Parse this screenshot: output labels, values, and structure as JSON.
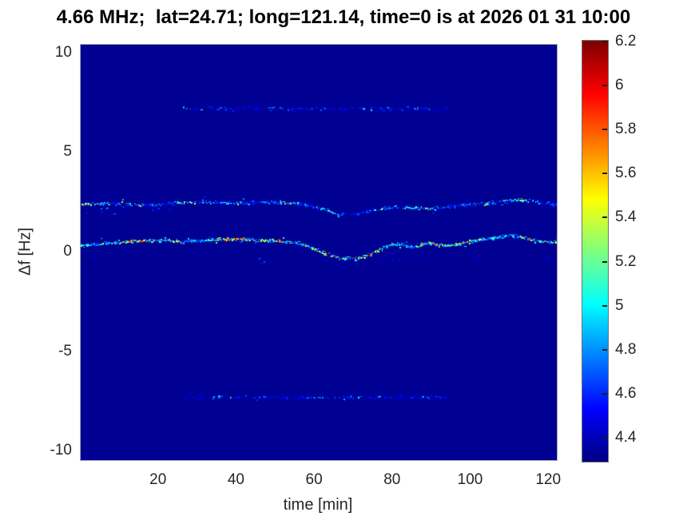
{
  "title": "4.66 MHz;  lat=24.71; long=121.14, time=0 is at 2026 01 31 10:00",
  "colors": {
    "page_background": "#ffffff",
    "heatmap_background_navy": "#000090",
    "axes_text": "#262626",
    "title_text": "#000000"
  },
  "chart_data": {
    "type": "heatmap",
    "title": "4.66 MHz;  lat=24.71; long=121.14, time=0 is at 2026 01 31 10:00",
    "xlabel": "time [min]",
    "ylabel": "Δf [Hz]",
    "xlim": [
      0,
      122
    ],
    "ylim": [
      -10.43,
      10.43
    ],
    "x_ticks": [
      20,
      40,
      60,
      80,
      100,
      120
    ],
    "y_ticks": [
      10,
      5,
      0,
      -5,
      -10
    ],
    "grid": false,
    "colormap": "jet",
    "caxis": [
      4.295,
      6.207
    ],
    "background_value": 4.33,
    "colorbar": {
      "position": "right",
      "tick_values": [
        6.2,
        6,
        5.8,
        5.6,
        5.4,
        5.2,
        5,
        4.8,
        4.6,
        4.4
      ],
      "tick_labels": [
        "6.2",
        "6",
        "5.8",
        "5.6",
        "5.4",
        "5.2",
        "5",
        "4.8",
        "4.6",
        "4.4"
      ]
    },
    "series": [
      {
        "name": "upper-doppler-trace",
        "description": "speckled Doppler trace near +2.5 Hz, mostly blue-cyan with sparse yellow/orange",
        "t": [
          0,
          8,
          16,
          24,
          32,
          40,
          48,
          56,
          62,
          66,
          70,
          75,
          80,
          85,
          90,
          95,
          100,
          104,
          108,
          113,
          118,
          122
        ],
        "f": [
          2.45,
          2.5,
          2.4,
          2.5,
          2.55,
          2.5,
          2.55,
          2.5,
          2.2,
          1.9,
          1.95,
          2.15,
          2.3,
          2.25,
          2.2,
          2.35,
          2.45,
          2.5,
          2.6,
          2.65,
          2.5,
          2.45
        ],
        "density": 0.8,
        "jitter": 0.09,
        "intensity": [
          4.5,
          5.25
        ],
        "bright_prob": 0.07,
        "bright_intensity": [
          5.2,
          5.9
        ]
      },
      {
        "name": "main-doppler-trace",
        "description": "bright speckled Doppler trace near +0.5 Hz dipping to -0.3 Hz around t=70, many green/yellow/orange/red speckles",
        "t": [
          0,
          5,
          10,
          15,
          18,
          22,
          25,
          30,
          35,
          40,
          45,
          50,
          55,
          58,
          62,
          66,
          70,
          74,
          78,
          81,
          85,
          89,
          93,
          97,
          100,
          106,
          111,
          116,
          122
        ],
        "f": [
          0.35,
          0.45,
          0.55,
          0.6,
          0.62,
          0.65,
          0.55,
          0.6,
          0.7,
          0.7,
          0.65,
          0.6,
          0.5,
          0.35,
          0.0,
          -0.25,
          -0.3,
          -0.1,
          0.35,
          0.45,
          0.3,
          0.5,
          0.35,
          0.45,
          0.6,
          0.75,
          0.9,
          0.6,
          0.55
        ],
        "density": 0.92,
        "jitter": 0.09,
        "intensity": [
          4.65,
          5.6
        ],
        "bright_prob": 0.14,
        "bright_intensity": [
          5.4,
          6.18
        ]
      },
      {
        "name": "upper-sideband-streak",
        "description": "faint dim-blue horizontal streak near +7.25 Hz between t=26 and t=94",
        "t": [
          26,
          94
        ],
        "f": [
          7.25,
          7.25
        ],
        "density": 0.55,
        "jitter": 0.1,
        "intensity": [
          4.4,
          4.8
        ],
        "bright_prob": 0.05,
        "bright_intensity": [
          4.85,
          5.1
        ]
      },
      {
        "name": "lower-sideband-streak",
        "description": "faint dim-blue horizontal streak near -7.25 Hz between t=26 and t=94",
        "t": [
          26,
          94
        ],
        "f": [
          -7.25,
          -7.25
        ],
        "density": 0.55,
        "jitter": 0.1,
        "intensity": [
          4.4,
          4.8
        ],
        "bright_prob": 0.05,
        "bright_intensity": [
          4.85,
          5.1
        ]
      },
      {
        "name": "faint-echo-trace",
        "description": "very sparse faint speckles just below the main trace",
        "t": [
          2,
          30,
          60,
          80,
          100,
          120
        ],
        "f": [
          -0.3,
          -0.2,
          -0.55,
          -0.3,
          -0.2,
          -0.25
        ],
        "density": 0.12,
        "jitter": 0.28,
        "intensity": [
          4.38,
          4.62
        ],
        "bright_prob": 0.01,
        "bright_intensity": [
          4.7,
          4.9
        ]
      },
      {
        "name": "upper-trace-halo",
        "description": "loose dim speckles under the start of the upper trace",
        "t": [
          0,
          25
        ],
        "f": [
          2.1,
          2.2
        ],
        "density": 0.14,
        "jitter": 0.22,
        "intensity": [
          4.4,
          4.9
        ],
        "bright_prob": 0.02,
        "bright_intensity": [
          4.9,
          5.1
        ]
      }
    ]
  }
}
